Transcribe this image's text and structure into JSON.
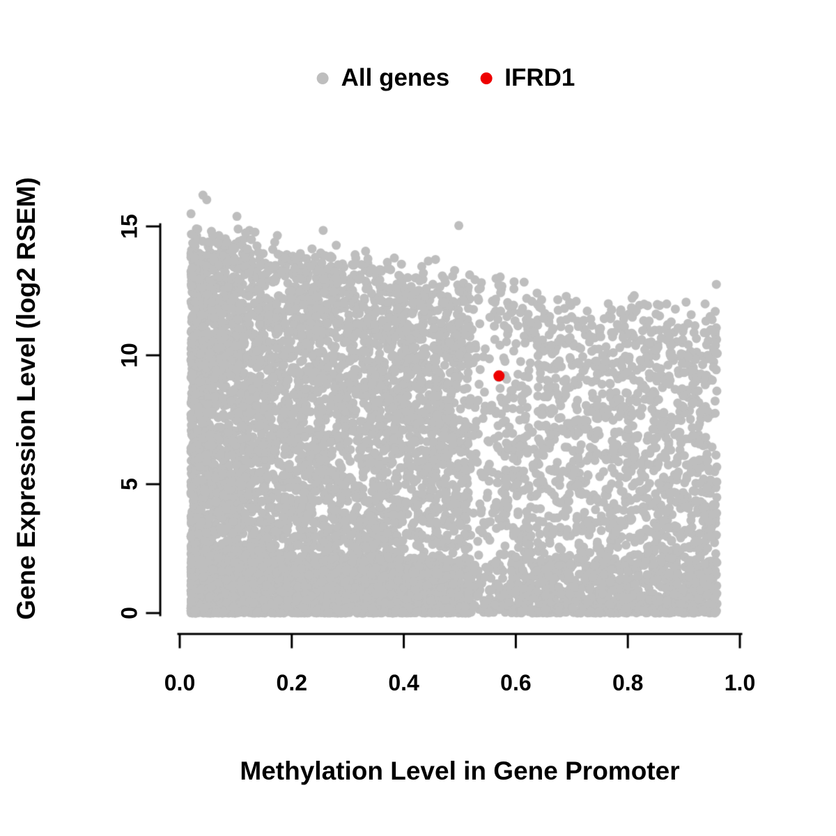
{
  "chart_data": {
    "type": "scatter",
    "title": "",
    "xlabel": "Methylation Level in Gene Promoter",
    "ylabel": "Gene Expression Level (log2 RSEM)",
    "xlim": [
      0,
      1
    ],
    "ylim": [
      0,
      17.5
    ],
    "x_tick_labels": [
      "0.0",
      "0.2",
      "0.4",
      "0.6",
      "0.8",
      "1.0"
    ],
    "x_tick_values": [
      0,
      0.2,
      0.4,
      0.6,
      0.8,
      1.0
    ],
    "y_tick_labels": [
      "0",
      "5",
      "10",
      "15"
    ],
    "y_tick_values": [
      0,
      5,
      10,
      15
    ],
    "grid": false,
    "legend_position": "top-center",
    "background_color": "#ffffff",
    "axis_color": "#000000",
    "series": [
      {
        "name": "All genes",
        "type": "dense-cloud",
        "color": "#bebebe",
        "n_points": 9000,
        "seed": 42,
        "x_range": [
          0.02,
          0.96
        ],
        "envelope_description": "maximum expression declines roughly linearly from ~14.6 at methylation 0 to ~11.3 at methylation 0.95; cloud densest at low methylation and near expression 0; sparse outliers up to ~17",
        "note": "thousands of overlapping points; individual positions procedurally approximated from the visible density"
      },
      {
        "name": "IFRD1",
        "type": "highlight-point",
        "color": "#ee0000",
        "points": [
          [
            0.57,
            9.2
          ]
        ]
      }
    ]
  }
}
